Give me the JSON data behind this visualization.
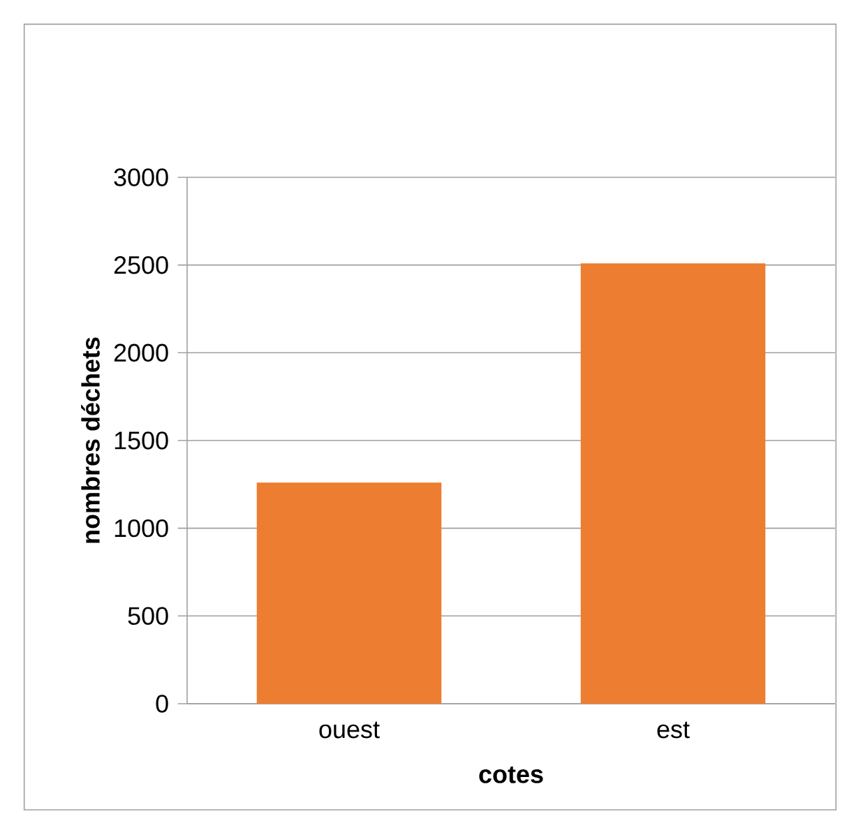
{
  "chart_data": {
    "type": "bar",
    "xlabel": "cotes",
    "ylabel": "nombres  déchets",
    "categories": [
      "ouest",
      "est"
    ],
    "values": [
      1260,
      2510
    ],
    "color": "#ed7d31",
    "ylim": [
      0,
      3000
    ],
    "yticks": [
      0,
      500,
      1000,
      1500,
      2000,
      2500,
      3000
    ],
    "grid": "y"
  }
}
